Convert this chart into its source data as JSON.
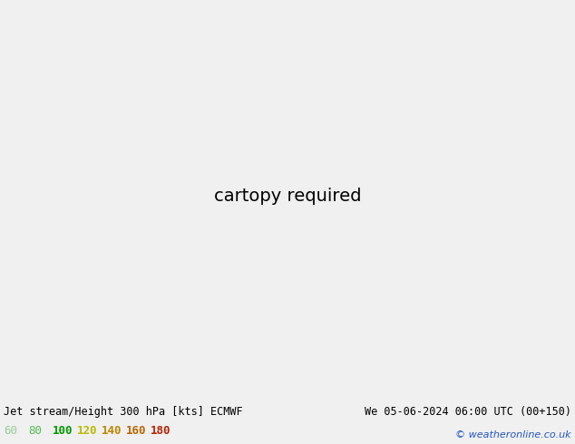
{
  "title_left": "Jet stream/Height 300 hPa [kts] ECMWF",
  "title_right": "We 05-06-2024 06:00 UTC (00+150)",
  "copyright": "© weatheronline.co.uk",
  "legend_labels": [
    "60",
    "80",
    "100",
    "120",
    "140",
    "160",
    "180"
  ],
  "legend_colors_text": [
    "#99cc99",
    "#55bb55",
    "#009900",
    "#bbbb00",
    "#bb8800",
    "#bb6600",
    "#bb2200"
  ],
  "jet_colors": [
    "#aaddaa",
    "#66cc66",
    "#009900",
    "#dddd00",
    "#ddaa00",
    "#dd7700",
    "#dd2200"
  ],
  "jet_levels": [
    60,
    80,
    100,
    120,
    140,
    160,
    180,
    999
  ],
  "land_color": "#c8e8c0",
  "ocean_color": "#e8e8e8",
  "border_color": "#888888",
  "contour_color": "#111111",
  "info_bg": "#f0f0f0",
  "fig_width": 6.34,
  "fig_height": 4.9,
  "dpi": 100,
  "lon_min": -170,
  "lon_max": -30,
  "lat_min": 20,
  "lat_max": 80,
  "central_lon": -100,
  "central_lat": 50
}
